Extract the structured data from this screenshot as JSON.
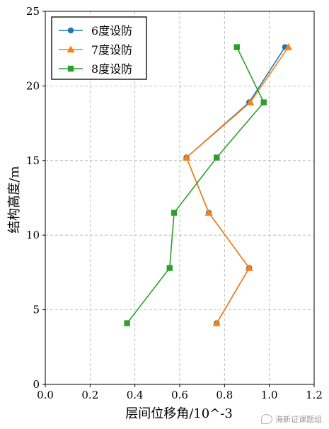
{
  "chart_data": {
    "type": "line",
    "xlabel": "层间位移角/10^-3",
    "ylabel": "结构高度/m",
    "xlim": [
      0,
      1.2
    ],
    "ylim": [
      0,
      25
    ],
    "xticks": [
      0,
      0.2,
      0.4,
      0.6,
      0.8,
      1.0,
      1.2
    ],
    "yticks": [
      0,
      5,
      10,
      15,
      20,
      25
    ],
    "xtick_labels": [
      "0.0",
      "0.2",
      "0.4",
      "0.6",
      "0.8",
      "1.0",
      "1.2"
    ],
    "ytick_labels": [
      "0",
      "5",
      "10",
      "15",
      "20",
      "25"
    ],
    "grid": true,
    "legend_position": "top-left",
    "series": [
      {
        "name": "6度设防",
        "color": "#1f77b4",
        "marker": "circle",
        "x": [
          0.765,
          0.91,
          0.73,
          0.63,
          0.91,
          1.07
        ],
        "y": [
          4.1,
          7.8,
          11.5,
          15.2,
          18.9,
          22.6
        ]
      },
      {
        "name": "7度设防",
        "color": "#ff7f0e",
        "marker": "triangle",
        "x": [
          0.765,
          0.91,
          0.73,
          0.63,
          0.915,
          1.085
        ],
        "y": [
          4.1,
          7.8,
          11.5,
          15.2,
          18.9,
          22.6
        ]
      },
      {
        "name": "8度设防",
        "color": "#2ca02c",
        "marker": "square",
        "x": [
          0.365,
          0.555,
          0.575,
          0.765,
          0.975,
          0.855
        ],
        "y": [
          4.1,
          7.8,
          11.5,
          15.2,
          18.9,
          22.6
        ]
      }
    ]
  },
  "watermark": {
    "text": "海新证课题组"
  }
}
